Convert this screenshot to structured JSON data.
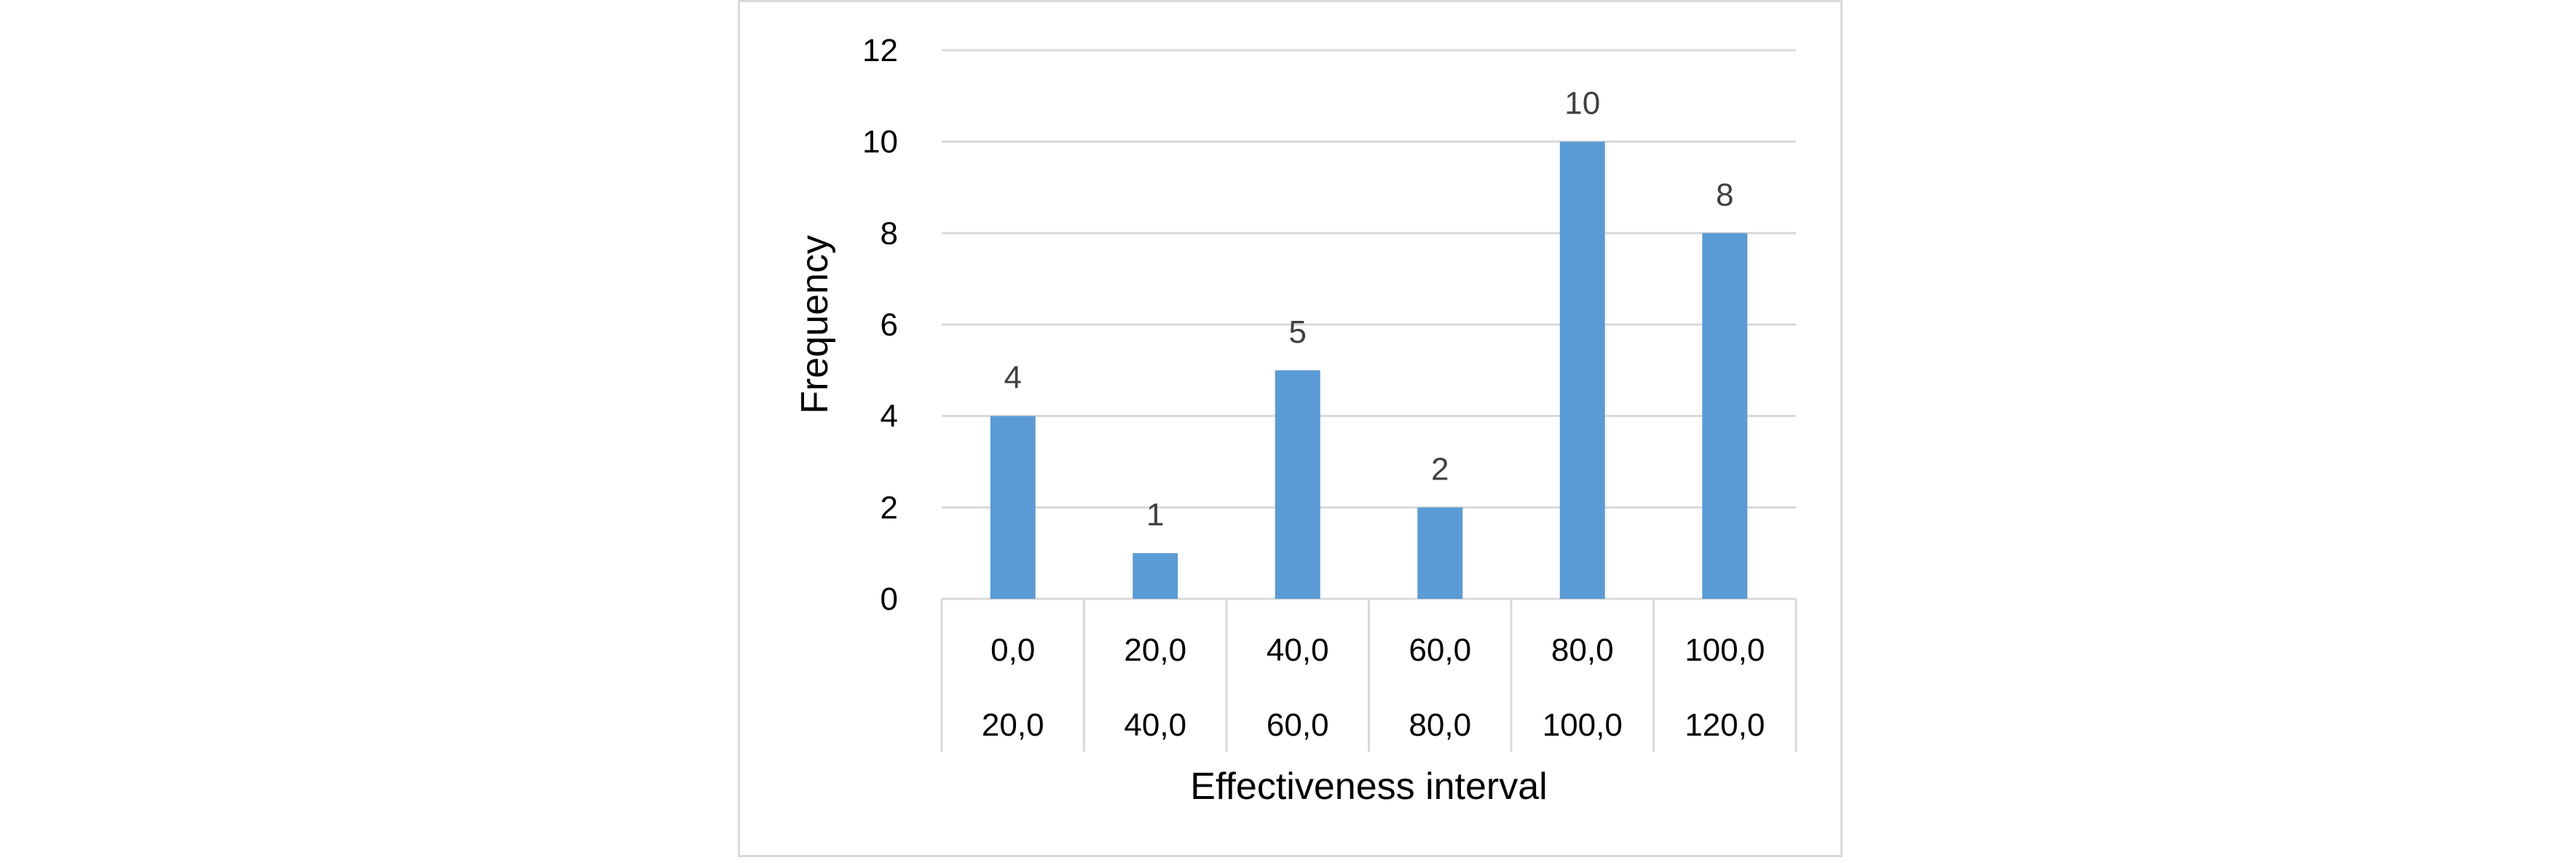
{
  "chart_data": {
    "type": "bar",
    "categories": [
      [
        "0,0",
        "20,0"
      ],
      [
        "20,0",
        "40,0"
      ],
      [
        "40,0",
        "60,0"
      ],
      [
        "60,0",
        "80,0"
      ],
      [
        "80,0",
        "100,0"
      ],
      [
        "100,0",
        "120,0"
      ]
    ],
    "values": [
      4,
      1,
      5,
      2,
      10,
      8
    ],
    "data_labels": [
      "4",
      "1",
      "5",
      "2",
      "10",
      "8"
    ],
    "xlabel": "Effectiveness interval",
    "ylabel": "Frequency",
    "ylim": [
      0,
      12
    ],
    "yticks": [
      "0",
      "2",
      "4",
      "6",
      "8",
      "10",
      "12"
    ],
    "grid": "horizontal",
    "legend": "none",
    "bar_color": "#5B9BD5",
    "grid_color": "#d9d9d9"
  }
}
